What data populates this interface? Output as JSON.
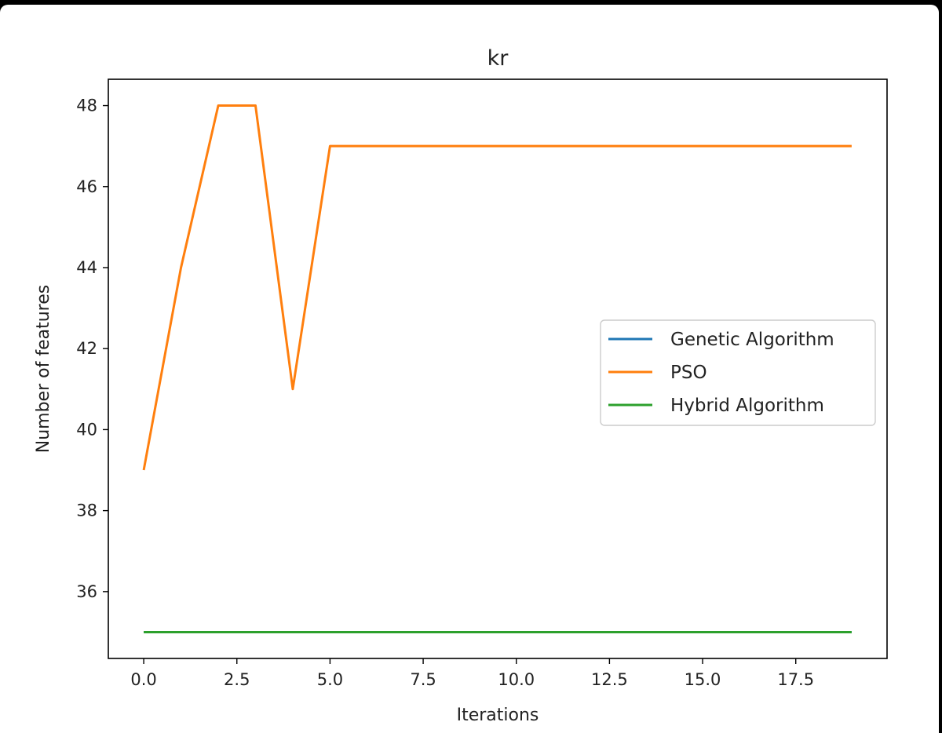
{
  "chart_data": {
    "type": "line",
    "title": "kr",
    "xlabel": "Iterations",
    "ylabel": "Number of features",
    "xlim": [
      -0.95,
      19.95
    ],
    "ylim": [
      34.35,
      48.65
    ],
    "xticks": [
      "0.0",
      "2.5",
      "5.0",
      "7.5",
      "10.0",
      "12.5",
      "15.0",
      "17.5"
    ],
    "xtick_values": [
      0,
      2.5,
      5,
      7.5,
      10,
      12.5,
      15,
      17.5
    ],
    "yticks": [
      "36",
      "38",
      "40",
      "42",
      "44",
      "46",
      "48"
    ],
    "ytick_values": [
      36,
      38,
      40,
      42,
      44,
      46,
      48
    ],
    "grid": false,
    "legend_position": "center-right",
    "x": [
      0,
      1,
      2,
      3,
      4,
      5,
      6,
      7,
      8,
      9,
      10,
      11,
      12,
      13,
      14,
      15,
      16,
      17,
      18,
      19
    ],
    "series": [
      {
        "name": "Genetic Algorithm",
        "color": "#1f77b4",
        "values": [
          35,
          35,
          35,
          35,
          35,
          35,
          35,
          35,
          35,
          35,
          35,
          35,
          35,
          35,
          35,
          35,
          35,
          35,
          35,
          35
        ]
      },
      {
        "name": "PSO",
        "color": "#ff7f0e",
        "values": [
          39,
          44,
          48,
          48,
          41,
          47,
          47,
          47,
          47,
          47,
          47,
          47,
          47,
          47,
          47,
          47,
          47,
          47,
          47,
          47
        ]
      },
      {
        "name": "Hybrid Algorithm",
        "color": "#2ca02c",
        "values": [
          35,
          35,
          35,
          35,
          35,
          35,
          35,
          35,
          35,
          35,
          35,
          35,
          35,
          35,
          35,
          35,
          35,
          35,
          35,
          35
        ]
      }
    ]
  }
}
